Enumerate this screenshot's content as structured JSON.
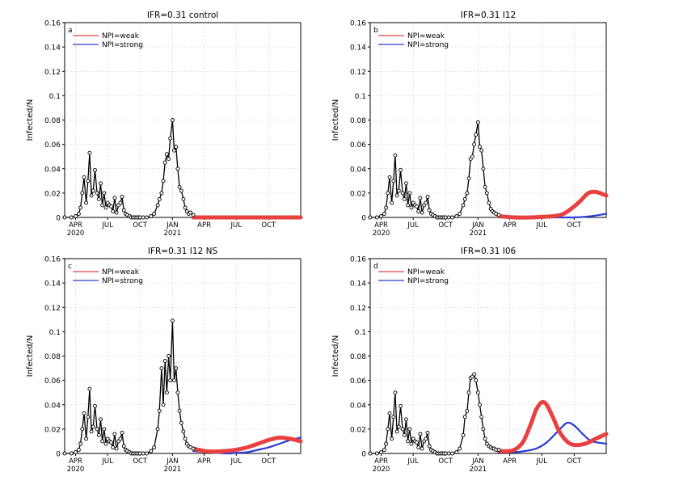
{
  "chart_data": [
    {
      "type": "line",
      "title": "IFR=0.31 control",
      "panel_label": "a",
      "ylabel": "Infected/N",
      "xlabel": "",
      "ylim": [
        0,
        0.16
      ],
      "y_ticks": [
        "0",
        "0.02",
        "0.04",
        "0.06",
        "0.08",
        "0.1",
        "0.12",
        "0.14",
        "0.16"
      ],
      "x_ticks": [
        "APR",
        "JUL",
        "OCT",
        "JAN",
        "APR",
        "JUL",
        "OCT"
      ],
      "x_years": [
        "2020",
        "2021"
      ],
      "grid": true,
      "legend": [
        {
          "name": "NPI=weak",
          "color": "#e8413f"
        },
        {
          "name": "NPI=strong",
          "color": "#2b3bd6"
        }
      ],
      "legend_position": "top-left",
      "observed": {
        "name": "observed",
        "x": [
          "2020-03-01",
          "2020-03-20",
          "2020-04-01",
          "2020-04-10",
          "2020-04-15",
          "2020-04-20",
          "2020-04-25",
          "2020-05-01",
          "2020-05-06",
          "2020-05-11",
          "2020-05-16",
          "2020-05-21",
          "2020-05-26",
          "2020-06-01",
          "2020-06-06",
          "2020-06-11",
          "2020-06-16",
          "2020-06-21",
          "2020-06-26",
          "2020-07-01",
          "2020-07-06",
          "2020-07-11",
          "2020-07-16",
          "2020-07-21",
          "2020-07-26",
          "2020-08-01",
          "2020-08-06",
          "2020-08-11",
          "2020-08-16",
          "2020-08-21",
          "2020-08-26",
          "2020-09-01",
          "2020-09-06",
          "2020-09-11",
          "2020-09-16",
          "2020-09-21",
          "2020-09-26",
          "2020-10-01",
          "2020-10-10",
          "2020-10-20",
          "2020-11-01",
          "2020-11-10",
          "2020-11-20",
          "2020-11-25",
          "2020-12-01",
          "2020-12-06",
          "2020-12-11",
          "2020-12-16",
          "2020-12-21",
          "2020-12-26",
          "2021-01-01",
          "2021-01-06",
          "2021-01-11",
          "2021-01-16",
          "2021-01-21",
          "2021-01-26",
          "2021-02-01",
          "2021-02-06",
          "2021-02-11",
          "2021-02-16",
          "2021-02-21",
          "2021-03-01"
        ],
        "y": [
          0,
          0,
          0.001,
          0.003,
          0.008,
          0.02,
          0.033,
          0.012,
          0.03,
          0.053,
          0.018,
          0.022,
          0.039,
          0.02,
          0.015,
          0.028,
          0.01,
          0.02,
          0.008,
          0.012,
          0.01,
          0.009,
          0.005,
          0.016,
          0.004,
          0.01,
          0.012,
          0.017,
          0.006,
          0.003,
          0.002,
          0.001,
          0,
          0,
          0,
          0,
          0,
          0,
          0,
          0,
          0.001,
          0.003,
          0.01,
          0.015,
          0.02,
          0.03,
          0.045,
          0.052,
          0.048,
          0.065,
          0.08,
          0.055,
          0.058,
          0.04,
          0.025,
          0.022,
          0.015,
          0.008,
          0.005,
          0.003,
          0.004,
          0.002
        ]
      },
      "series": [
        {
          "name": "NPI=weak",
          "x": [
            "2021-03-01",
            "2021-05-01",
            "2021-07-01",
            "2021-09-01",
            "2021-11-01",
            "2021-12-31"
          ],
          "y": [
            0,
            0,
            0,
            0,
            0,
            0
          ]
        },
        {
          "name": "NPI=strong",
          "x": [
            "2021-03-01",
            "2021-05-01",
            "2021-07-01",
            "2021-09-01",
            "2021-11-01",
            "2021-12-31"
          ],
          "y": [
            0,
            0,
            0,
            0,
            0,
            0
          ]
        }
      ]
    },
    {
      "type": "line",
      "title": "IFR=0.31 I12",
      "panel_label": "b",
      "ylabel": "Infected/N",
      "xlabel": "",
      "ylim": [
        0,
        0.16
      ],
      "y_ticks": [
        "0",
        "0.02",
        "0.04",
        "0.06",
        "0.08",
        "0.1",
        "0.12",
        "0.14",
        "0.16"
      ],
      "x_ticks": [
        "APR",
        "JUL",
        "OCT",
        "JAN",
        "APR",
        "JUL",
        "OCT"
      ],
      "x_years": [
        "2020",
        "2021"
      ],
      "grid": true,
      "legend": [
        {
          "name": "NPI=weak",
          "color": "#e8413f"
        },
        {
          "name": "NPI=strong",
          "color": "#2b3bd6"
        }
      ],
      "legend_position": "top-left",
      "observed": {
        "name": "observed",
        "x": [
          "2020-03-01",
          "2020-03-20",
          "2020-04-01",
          "2020-04-10",
          "2020-04-15",
          "2020-04-20",
          "2020-04-25",
          "2020-05-01",
          "2020-05-06",
          "2020-05-11",
          "2020-05-16",
          "2020-05-21",
          "2020-05-26",
          "2020-06-01",
          "2020-06-06",
          "2020-06-11",
          "2020-06-16",
          "2020-06-21",
          "2020-06-26",
          "2020-07-01",
          "2020-07-06",
          "2020-07-11",
          "2020-07-16",
          "2020-07-21",
          "2020-07-26",
          "2020-08-01",
          "2020-08-06",
          "2020-08-11",
          "2020-08-16",
          "2020-08-21",
          "2020-08-26",
          "2020-09-01",
          "2020-09-06",
          "2020-09-11",
          "2020-09-16",
          "2020-09-21",
          "2020-09-26",
          "2020-10-01",
          "2020-10-10",
          "2020-10-20",
          "2020-11-01",
          "2020-11-10",
          "2020-11-20",
          "2020-11-25",
          "2020-12-01",
          "2020-12-06",
          "2020-12-11",
          "2020-12-16",
          "2020-12-21",
          "2020-12-26",
          "2021-01-01",
          "2021-01-06",
          "2021-01-11",
          "2021-01-16",
          "2021-01-21",
          "2021-01-26",
          "2021-02-01",
          "2021-02-06",
          "2021-02-11",
          "2021-02-16",
          "2021-02-21",
          "2021-03-01"
        ],
        "y": [
          0,
          0,
          0.001,
          0.003,
          0.008,
          0.02,
          0.033,
          0.012,
          0.03,
          0.051,
          0.018,
          0.022,
          0.039,
          0.02,
          0.015,
          0.028,
          0.01,
          0.02,
          0.008,
          0.012,
          0.01,
          0.009,
          0.005,
          0.016,
          0.004,
          0.01,
          0.012,
          0.017,
          0.006,
          0.003,
          0.002,
          0.001,
          0,
          0,
          0,
          0,
          0,
          0,
          0,
          0,
          0.001,
          0.003,
          0.01,
          0.015,
          0.02,
          0.032,
          0.048,
          0.05,
          0.06,
          0.068,
          0.078,
          0.058,
          0.055,
          0.04,
          0.025,
          0.02,
          0.012,
          0.007,
          0.005,
          0.004,
          0.003,
          0.002
        ]
      },
      "series": [
        {
          "name": "NPI=weak",
          "x": [
            "2021-03-01",
            "2021-04-15",
            "2021-06-01",
            "2021-07-01",
            "2021-08-01",
            "2021-09-01",
            "2021-10-01",
            "2021-10-20",
            "2021-11-10",
            "2021-12-01",
            "2021-12-31"
          ],
          "y": [
            0.001,
            0,
            0,
            0.0005,
            0.001,
            0.003,
            0.009,
            0.014,
            0.02,
            0.021,
            0.018
          ]
        },
        {
          "name": "NPI=strong",
          "x": [
            "2021-03-01",
            "2021-06-01",
            "2021-09-01",
            "2021-10-01",
            "2021-11-01",
            "2021-12-01",
            "2021-12-31"
          ],
          "y": [
            0,
            0,
            0,
            0,
            0.0005,
            0.0015,
            0.003
          ]
        }
      ]
    },
    {
      "type": "line",
      "title": "IFR=0.31 I12 NS",
      "panel_label": "c",
      "ylabel": "Infected/N",
      "xlabel": "",
      "ylim": [
        0,
        0.16
      ],
      "y_ticks": [
        "0",
        "0.02",
        "0.04",
        "0.06",
        "0.08",
        "0.1",
        "0.12",
        "0.14",
        "0.16"
      ],
      "x_ticks": [
        "APR",
        "JUL",
        "OCT",
        "JAN",
        "APR",
        "JUL",
        "OCT"
      ],
      "x_years": [
        "2020",
        "2021"
      ],
      "grid": true,
      "legend": [
        {
          "name": "NPI=weak",
          "color": "#e8413f"
        },
        {
          "name": "NPI=strong",
          "color": "#2b3bd6"
        }
      ],
      "legend_position": "top-left",
      "observed": {
        "name": "observed",
        "x": [
          "2020-03-01",
          "2020-03-20",
          "2020-04-01",
          "2020-04-10",
          "2020-04-15",
          "2020-04-20",
          "2020-04-25",
          "2020-05-01",
          "2020-05-06",
          "2020-05-11",
          "2020-05-16",
          "2020-05-21",
          "2020-05-26",
          "2020-06-01",
          "2020-06-06",
          "2020-06-11",
          "2020-06-16",
          "2020-06-21",
          "2020-06-26",
          "2020-07-01",
          "2020-07-06",
          "2020-07-11",
          "2020-07-16",
          "2020-07-21",
          "2020-07-26",
          "2020-08-01",
          "2020-08-06",
          "2020-08-11",
          "2020-08-16",
          "2020-08-21",
          "2020-08-26",
          "2020-09-01",
          "2020-09-06",
          "2020-09-11",
          "2020-09-16",
          "2020-09-21",
          "2020-09-26",
          "2020-10-01",
          "2020-10-10",
          "2020-10-20",
          "2020-11-01",
          "2020-11-10",
          "2020-11-20",
          "2020-11-25",
          "2020-12-01",
          "2020-12-06",
          "2020-12-11",
          "2020-12-16",
          "2020-12-21",
          "2020-12-26",
          "2021-01-01",
          "2021-01-06",
          "2021-01-11",
          "2021-01-16",
          "2021-01-21",
          "2021-01-26",
          "2021-02-01",
          "2021-02-06",
          "2021-02-11",
          "2021-02-16",
          "2021-02-21",
          "2021-03-01"
        ],
        "y": [
          0,
          0,
          0.001,
          0.003,
          0.008,
          0.02,
          0.033,
          0.012,
          0.03,
          0.053,
          0.018,
          0.022,
          0.039,
          0.02,
          0.015,
          0.028,
          0.01,
          0.02,
          0.008,
          0.012,
          0.01,
          0.009,
          0.005,
          0.016,
          0.004,
          0.01,
          0.012,
          0.017,
          0.006,
          0.003,
          0.002,
          0.001,
          0,
          0,
          0,
          0,
          0,
          0,
          0,
          0,
          0.002,
          0.005,
          0.02,
          0.035,
          0.07,
          0.04,
          0.076,
          0.05,
          0.08,
          0.06,
          0.109,
          0.06,
          0.07,
          0.05,
          0.035,
          0.025,
          0.018,
          0.012,
          0.008,
          0.006,
          0.005,
          0.004
        ]
      },
      "series": [
        {
          "name": "NPI=weak",
          "x": [
            "2021-03-01",
            "2021-04-01",
            "2021-05-01",
            "2021-06-01",
            "2021-07-01",
            "2021-08-01",
            "2021-09-01",
            "2021-10-01",
            "2021-11-01",
            "2021-12-01",
            "2021-12-31"
          ],
          "y": [
            0.004,
            0.002,
            0.0015,
            0.002,
            0.003,
            0.005,
            0.008,
            0.011,
            0.013,
            0.012,
            0.01
          ]
        },
        {
          "name": "NPI=strong",
          "x": [
            "2021-03-01",
            "2021-06-01",
            "2021-07-01",
            "2021-08-01",
            "2021-09-01",
            "2021-10-01",
            "2021-11-01",
            "2021-12-01",
            "2021-12-31"
          ],
          "y": [
            0.002,
            0,
            0.0005,
            0.001,
            0.003,
            0.005,
            0.008,
            0.011,
            0.013
          ]
        }
      ]
    },
    {
      "type": "line",
      "title": "IFR=0.31 I06",
      "panel_label": "d",
      "ylabel": "Infected/N",
      "xlabel": "",
      "ylim": [
        0,
        0.16
      ],
      "y_ticks": [
        "0",
        "0.02",
        "0.04",
        "0.06",
        "0.08",
        "0.1",
        "0.12",
        "0.14",
        "0.16"
      ],
      "x_ticks": [
        "APR",
        "JUL",
        "OCT",
        "JAN",
        "APR",
        "JUL",
        "OCT"
      ],
      "x_years": [
        "2020",
        "2021"
      ],
      "grid": true,
      "legend": [
        {
          "name": "NPI=weak",
          "color": "#e8413f"
        },
        {
          "name": "NPI=strong",
          "color": "#2b3bd6"
        }
      ],
      "legend_position": "top-left",
      "observed": {
        "name": "observed",
        "x": [
          "2020-03-01",
          "2020-03-20",
          "2020-04-01",
          "2020-04-10",
          "2020-04-15",
          "2020-04-20",
          "2020-04-25",
          "2020-05-01",
          "2020-05-06",
          "2020-05-11",
          "2020-05-16",
          "2020-05-21",
          "2020-05-26",
          "2020-06-01",
          "2020-06-06",
          "2020-06-11",
          "2020-06-16",
          "2020-06-21",
          "2020-06-26",
          "2020-07-01",
          "2020-07-06",
          "2020-07-11",
          "2020-07-16",
          "2020-07-21",
          "2020-07-26",
          "2020-08-01",
          "2020-08-06",
          "2020-08-11",
          "2020-08-16",
          "2020-08-21",
          "2020-08-26",
          "2020-09-01",
          "2020-09-06",
          "2020-09-11",
          "2020-09-16",
          "2020-09-21",
          "2020-09-26",
          "2020-10-01",
          "2020-10-10",
          "2020-10-20",
          "2020-11-01",
          "2020-11-10",
          "2020-11-20",
          "2020-11-25",
          "2020-12-01",
          "2020-12-06",
          "2020-12-11",
          "2020-12-16",
          "2020-12-21",
          "2020-12-26",
          "2021-01-01",
          "2021-01-06",
          "2021-01-11",
          "2021-01-16",
          "2021-01-21",
          "2021-01-26",
          "2021-02-01",
          "2021-02-06",
          "2021-02-11",
          "2021-02-16",
          "2021-02-21",
          "2021-03-01"
        ],
        "y": [
          0,
          0,
          0.001,
          0.003,
          0.008,
          0.02,
          0.033,
          0.012,
          0.03,
          0.05,
          0.018,
          0.022,
          0.039,
          0.02,
          0.015,
          0.028,
          0.01,
          0.02,
          0.008,
          0.012,
          0.01,
          0.009,
          0.005,
          0.016,
          0.004,
          0.01,
          0.012,
          0.017,
          0.006,
          0.003,
          0.002,
          0.001,
          0,
          0,
          0,
          0,
          0,
          0,
          0,
          0,
          0.001,
          0.004,
          0.015,
          0.03,
          0.035,
          0.05,
          0.062,
          0.063,
          0.065,
          0.06,
          0.05,
          0.04,
          0.03,
          0.02,
          0.012,
          0.008,
          0.006,
          0.005,
          0.004,
          0.004,
          0.003,
          0.003
        ]
      },
      "series": [
        {
          "name": "NPI=weak",
          "x": [
            "2021-03-01",
            "2021-04-01",
            "2021-04-20",
            "2021-05-10",
            "2021-06-01",
            "2021-06-15",
            "2021-07-01",
            "2021-07-15",
            "2021-08-01",
            "2021-08-20",
            "2021-09-10",
            "2021-10-01",
            "2021-11-01",
            "2021-12-01",
            "2021-12-31"
          ],
          "y": [
            0.002,
            0.002,
            0.004,
            0.01,
            0.025,
            0.036,
            0.042,
            0.04,
            0.03,
            0.018,
            0.01,
            0.007,
            0.008,
            0.012,
            0.016
          ]
        },
        {
          "name": "NPI=strong",
          "x": [
            "2021-03-01",
            "2021-04-15",
            "2021-05-15",
            "2021-06-15",
            "2021-07-15",
            "2021-08-15",
            "2021-09-10",
            "2021-10-01",
            "2021-10-25",
            "2021-11-20",
            "2021-12-31"
          ],
          "y": [
            0.001,
            0.001,
            0.002,
            0.004,
            0.009,
            0.018,
            0.025,
            0.023,
            0.016,
            0.01,
            0.008
          ]
        }
      ]
    }
  ]
}
